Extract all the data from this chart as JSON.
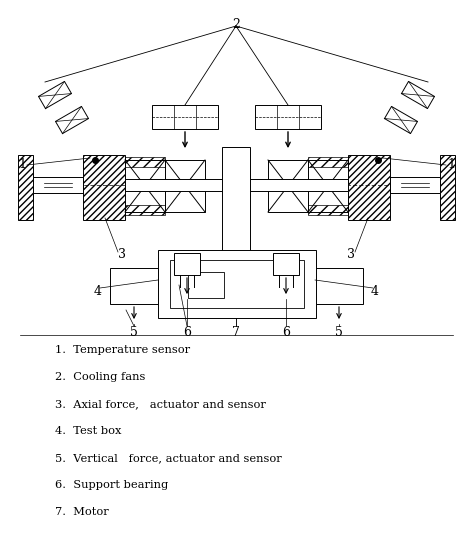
{
  "legend": [
    "1.  Temperature sensor",
    "2.  Cooling fans",
    "3.  Axial force,   actuator and sensor",
    "4.  Test box",
    "5.  Vertical   force, actuator and sensor",
    "6.  Support bearing",
    "7.  Motor"
  ],
  "bg_color": "#ffffff",
  "line_color": "#000000",
  "fig_width": 4.73,
  "fig_height": 5.42
}
